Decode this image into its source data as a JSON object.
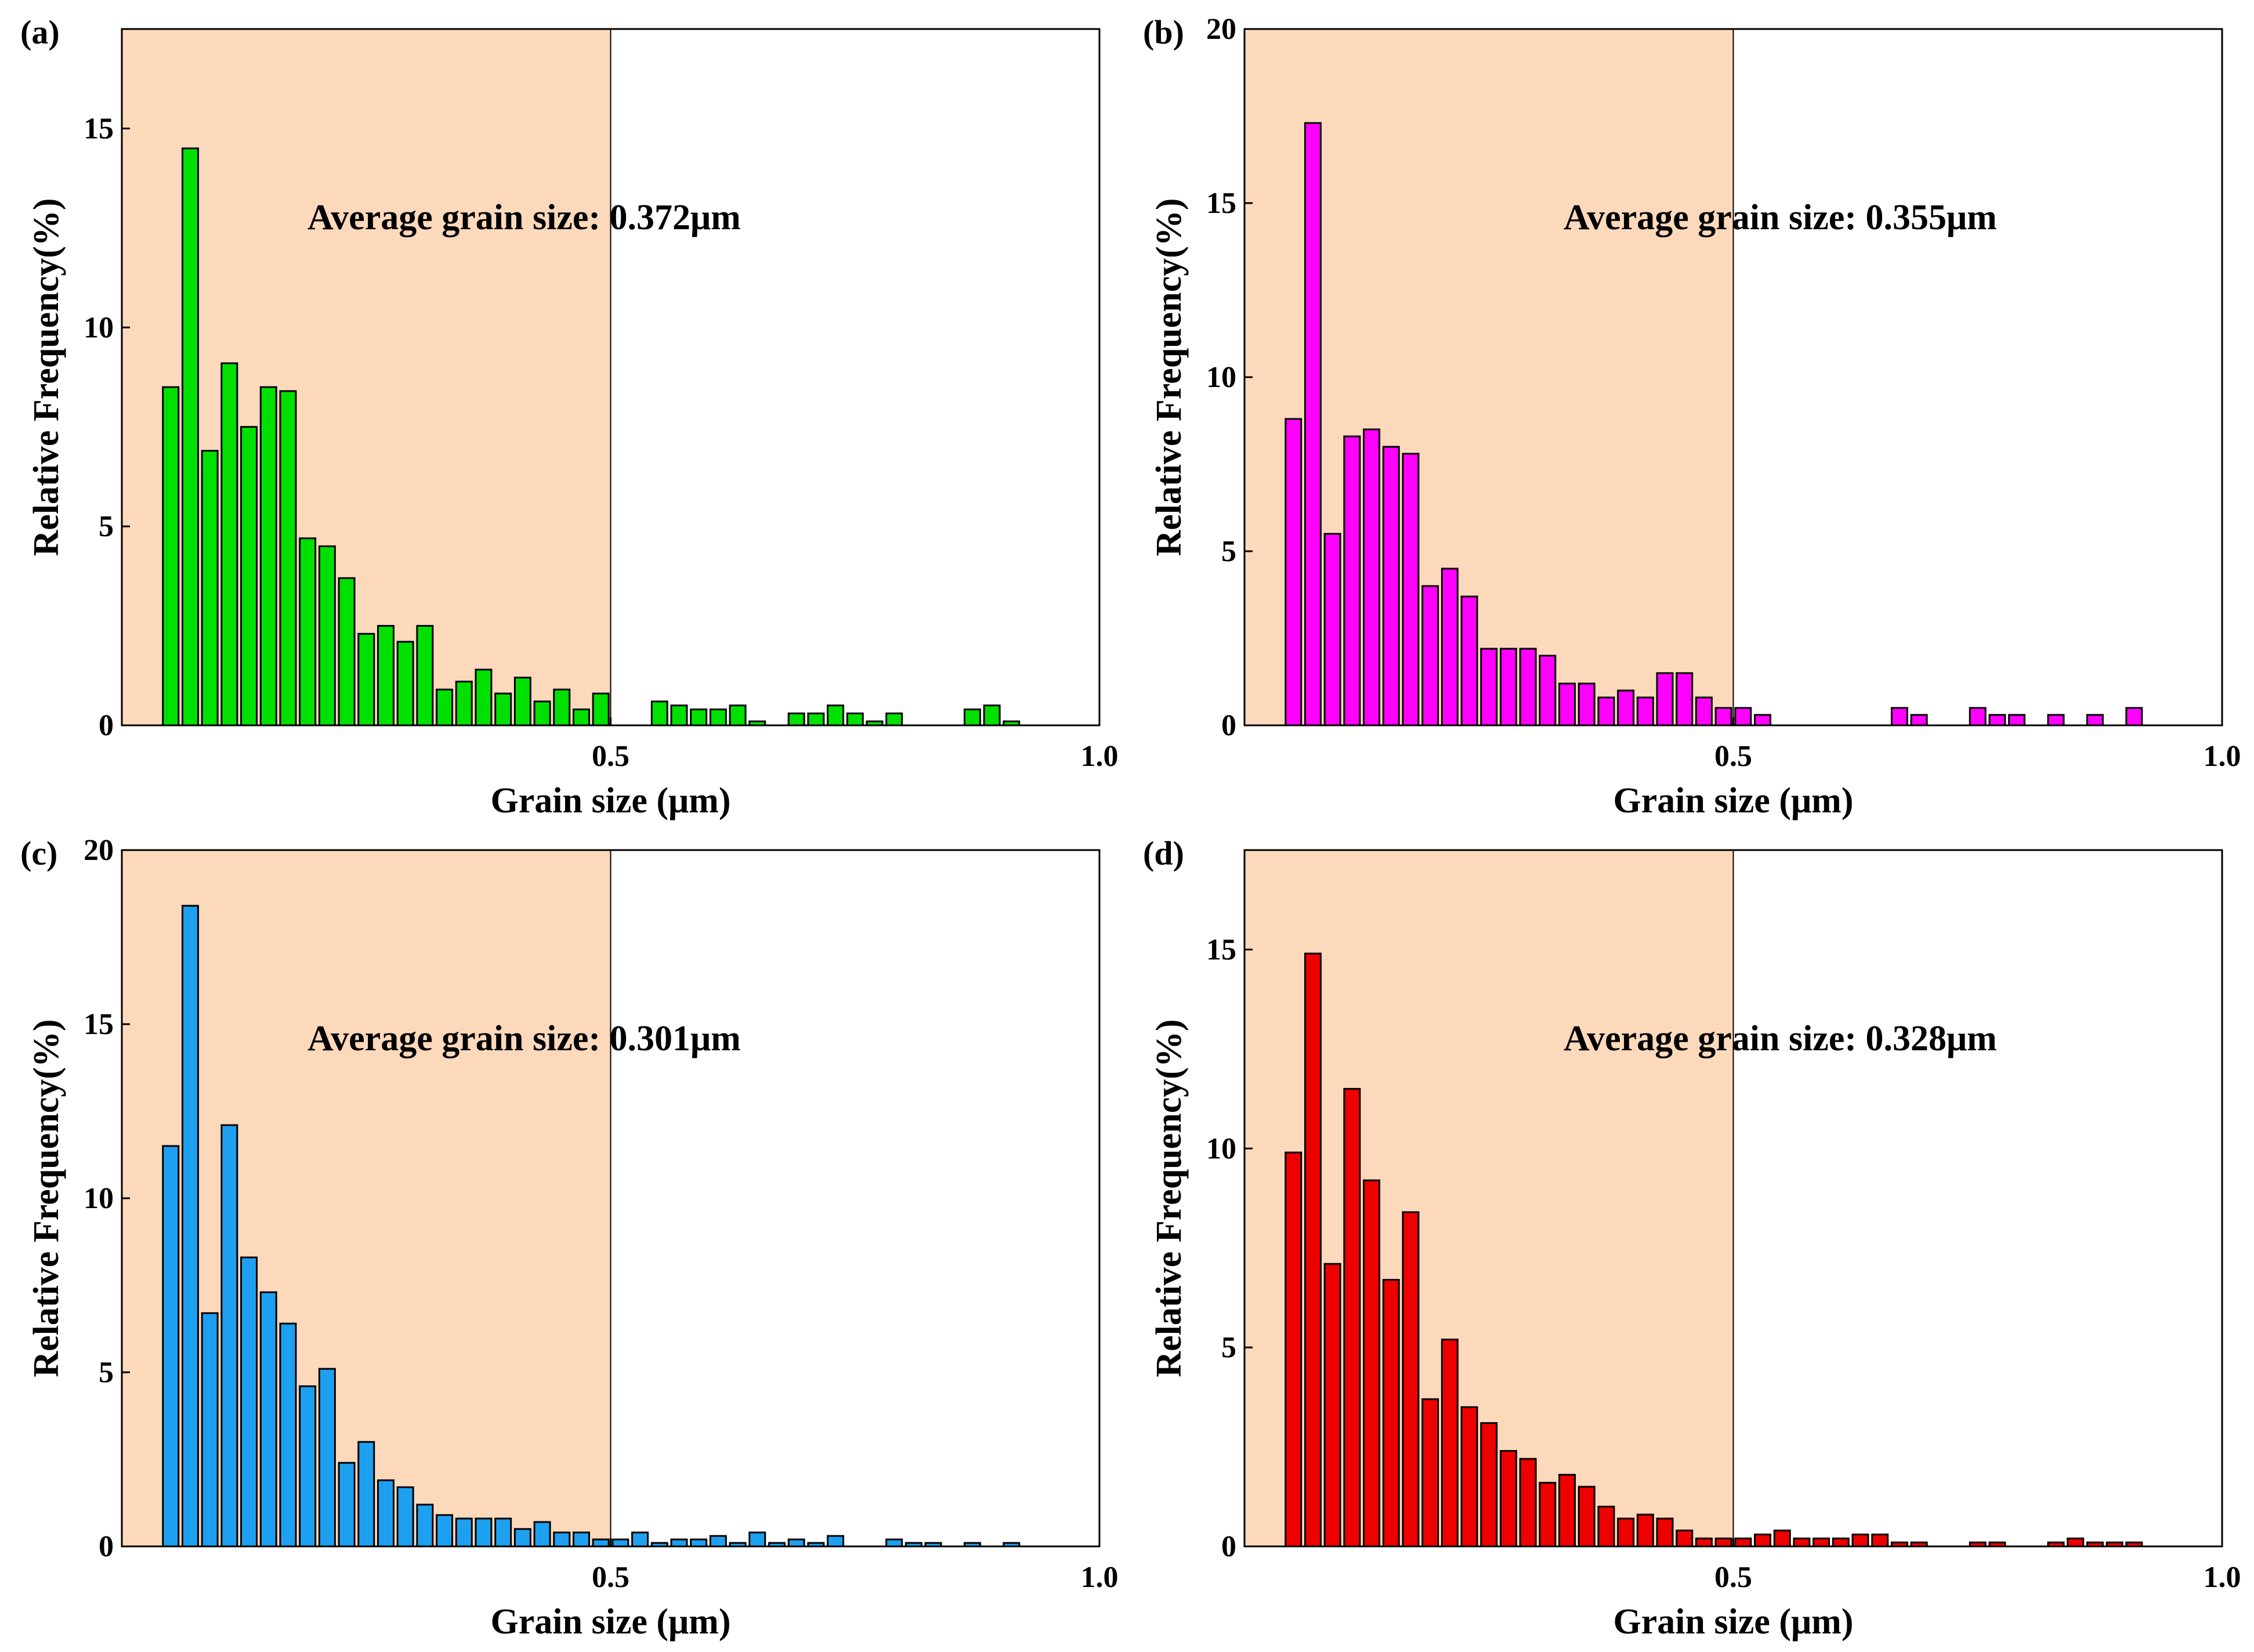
{
  "figure": {
    "shading_color": "#fdd9bc",
    "bar_stroke_color": "#000000"
  },
  "chart_data": [
    {
      "panel_label": "(a)",
      "type": "bar",
      "bar_color": "#00e000",
      "xlabel": "Grain size (μm)",
      "ylabel": "Relative Frequency(%)",
      "annotation": "Average grain size: 0.372μm",
      "xlim": [
        0.0,
        1.0
      ],
      "ylim": [
        0,
        17.5
      ],
      "xticks": [
        0.5,
        1.0
      ],
      "xtick_labels": [
        "0.5",
        "1.0"
      ],
      "yticks": [
        0,
        5,
        10,
        15
      ],
      "ytick_labels": [
        "0",
        "5",
        "10",
        "15"
      ],
      "shaded_range": [
        0.0,
        0.5
      ],
      "bin_start": 0.04,
      "bin_width": 0.02,
      "values": [
        8.5,
        14.5,
        6.9,
        9.1,
        7.5,
        8.5,
        8.4,
        4.7,
        4.5,
        3.7,
        2.3,
        2.5,
        2.1,
        2.5,
        0.9,
        1.1,
        1.4,
        0.8,
        1.2,
        0.6,
        0.9,
        0.4,
        0.8,
        0.0,
        0.0,
        0.6,
        0.5,
        0.4,
        0.4,
        0.5,
        0.1,
        0.0,
        0.3,
        0.3,
        0.5,
        0.3,
        0.1,
        0.3,
        0.0,
        0.0,
        0.0,
        0.4,
        0.5,
        0.1
      ]
    },
    {
      "panel_label": "(b)",
      "type": "bar",
      "bar_color": "#ff00ff",
      "xlabel": "Grain size (μm)",
      "ylabel": "Relative Frequency(%)",
      "annotation": "Average grain size: 0.355μm",
      "xlim": [
        0.0,
        1.0
      ],
      "ylim": [
        0,
        20
      ],
      "xticks": [
        0.5,
        1.0
      ],
      "xtick_labels": [
        "0.5",
        "1.0"
      ],
      "yticks": [
        0,
        5,
        10,
        15,
        20
      ],
      "ytick_labels": [
        "0",
        "5",
        "10",
        "15",
        "20"
      ],
      "shaded_range": [
        0.0,
        0.5
      ],
      "bin_start": 0.04,
      "bin_width": 0.02,
      "values": [
        8.8,
        17.3,
        5.5,
        8.3,
        8.5,
        8.0,
        7.8,
        4.0,
        4.5,
        3.7,
        2.2,
        2.2,
        2.2,
        2.0,
        1.2,
        1.2,
        0.8,
        1.0,
        0.8,
        1.5,
        1.5,
        0.8,
        0.5,
        0.5,
        0.3,
        0.0,
        0.0,
        0.0,
        0.0,
        0.0,
        0.0,
        0.5,
        0.3,
        0.0,
        0.0,
        0.5,
        0.3,
        0.3,
        0.0,
        0.3,
        0.0,
        0.3,
        0.0,
        0.5
      ]
    },
    {
      "panel_label": "(c)",
      "type": "bar",
      "bar_color": "#1ea0f0",
      "xlabel": "Grain size (μm)",
      "ylabel": "Relative Frequency(%)",
      "annotation": "Average grain size: 0.301μm",
      "xlim": [
        0.0,
        1.0
      ],
      "ylim": [
        0,
        20
      ],
      "xticks": [
        0.5,
        1.0
      ],
      "xtick_labels": [
        "0.5",
        "1.0"
      ],
      "yticks": [
        0,
        5,
        10,
        15,
        20
      ],
      "ytick_labels": [
        "0",
        "5",
        "10",
        "15",
        "20"
      ],
      "shaded_range": [
        0.0,
        0.5
      ],
      "bin_start": 0.04,
      "bin_width": 0.02,
      "values": [
        11.5,
        18.4,
        6.7,
        12.1,
        8.3,
        7.3,
        6.4,
        4.6,
        5.1,
        2.4,
        3.0,
        1.9,
        1.7,
        1.2,
        0.9,
        0.8,
        0.8,
        0.8,
        0.5,
        0.7,
        0.4,
        0.4,
        0.2,
        0.2,
        0.4,
        0.1,
        0.2,
        0.2,
        0.3,
        0.1,
        0.4,
        0.1,
        0.2,
        0.1,
        0.3,
        0.0,
        0.0,
        0.2,
        0.1,
        0.1,
        0.0,
        0.1,
        0.0,
        0.1
      ]
    },
    {
      "panel_label": "(d)",
      "type": "bar",
      "bar_color": "#ee0000",
      "xlabel": "Grain size (μm)",
      "ylabel": "Relative Frequency(%)",
      "annotation": "Average grain size: 0.328μm",
      "xlim": [
        0.0,
        1.0
      ],
      "ylim": [
        0,
        17.5
      ],
      "xticks": [
        0.5,
        1.0
      ],
      "xtick_labels": [
        "0.5",
        "1.0"
      ],
      "yticks": [
        0,
        5,
        10,
        15
      ],
      "ytick_labels": [
        "0",
        "5",
        "10",
        "15"
      ],
      "shaded_range": [
        0.0,
        0.5
      ],
      "bin_start": 0.04,
      "bin_width": 0.02,
      "values": [
        9.9,
        14.9,
        7.1,
        11.5,
        9.2,
        6.7,
        8.4,
        3.7,
        5.2,
        3.5,
        3.1,
        2.4,
        2.2,
        1.6,
        1.8,
        1.5,
        1.0,
        0.7,
        0.8,
        0.7,
        0.4,
        0.2,
        0.2,
        0.2,
        0.3,
        0.4,
        0.2,
        0.2,
        0.2,
        0.3,
        0.3,
        0.1,
        0.1,
        0.0,
        0.0,
        0.1,
        0.1,
        0.0,
        0.0,
        0.1,
        0.2,
        0.1,
        0.1,
        0.1
      ]
    }
  ]
}
